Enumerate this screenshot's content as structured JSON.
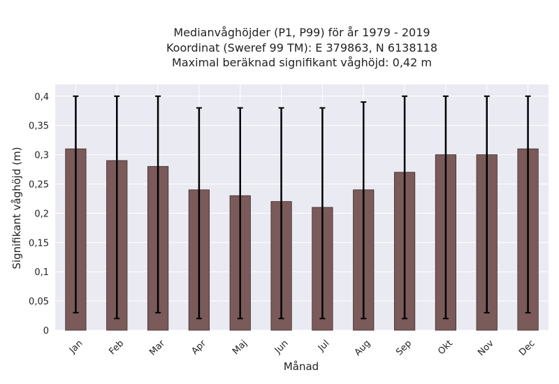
{
  "chart_data": {
    "type": "bar",
    "title_lines": [
      "Medianvåghöjder (P1, P99) för år 1979 - 2019",
      "Koordinat (Sweref 99 TM): E 379863, N 6138118",
      "Maximal beräknad signifikant våghöjd: 0,42 m"
    ],
    "xlabel": "Månad",
    "ylabel": "Signifikant våghöjd (m)",
    "categories": [
      "Jan",
      "Feb",
      "Mar",
      "Apr",
      "Maj",
      "Jun",
      "Jul",
      "Aug",
      "Sep",
      "Okt",
      "Nov",
      "Dec"
    ],
    "values": [
      0.31,
      0.29,
      0.28,
      0.24,
      0.23,
      0.22,
      0.21,
      0.24,
      0.27,
      0.3,
      0.3,
      0.31
    ],
    "p1": [
      0.03,
      0.02,
      0.03,
      0.02,
      0.02,
      0.02,
      0.02,
      0.02,
      0.02,
      0.02,
      0.03,
      0.03
    ],
    "p99": [
      0.4,
      0.4,
      0.4,
      0.38,
      0.38,
      0.38,
      0.38,
      0.39,
      0.4,
      0.4,
      0.4,
      0.4
    ],
    "ylim": [
      0,
      0.42
    ],
    "yticks": [
      0,
      0.05,
      0.1,
      0.15,
      0.2,
      0.25,
      0.3,
      0.35,
      0.4
    ],
    "ytick_labels": [
      "0",
      "0,05",
      "0,1",
      "0,15",
      "0,2",
      "0,25",
      "0,3",
      "0,35",
      "0,4"
    ],
    "grid": true,
    "colors": {
      "bar_fill": "#7b5a5a",
      "bar_edge": "#3d2b2b",
      "error_bar": "#000000",
      "plot_background": "#eaeaf2",
      "grid": "#ffffff"
    }
  }
}
